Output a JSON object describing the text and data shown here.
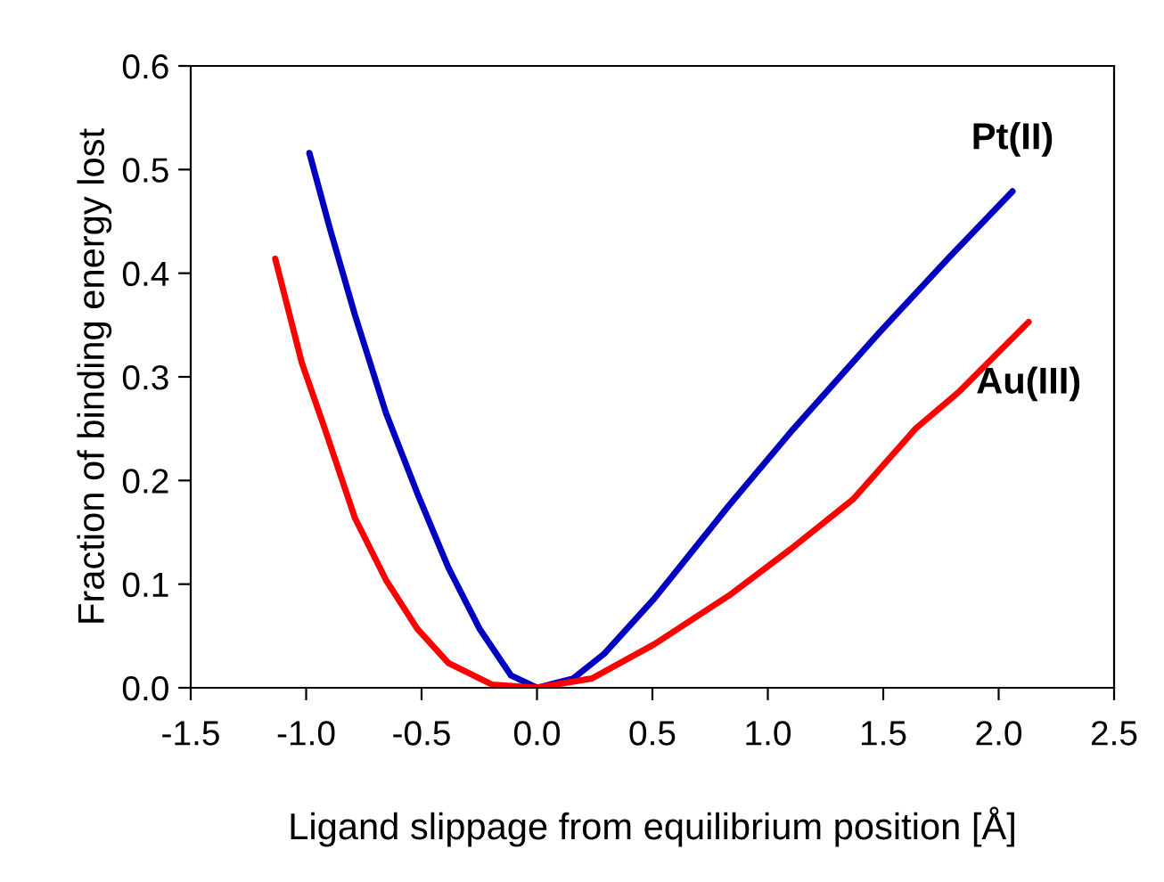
{
  "chart_data": {
    "type": "line",
    "xlabel": "Ligand slippage from equilibrium position [Å]",
    "ylabel": "Fraction of binding energy lost",
    "xlim": [
      -1.5,
      2.5
    ],
    "xticks": [
      {
        "value": -1.5,
        "label": "-1.5"
      },
      {
        "value": -1.0,
        "label": "-1.0"
      },
      {
        "value": -0.5,
        "label": "-0.5"
      },
      {
        "value": 0.0,
        "label": "0.0"
      },
      {
        "value": 0.5,
        "label": "0.5"
      },
      {
        "value": 1.0,
        "label": "1.0"
      },
      {
        "value": 1.5,
        "label": "1.5"
      },
      {
        "value": 2.0,
        "label": "2.0"
      },
      {
        "value": 2.5,
        "label": "2.5"
      }
    ],
    "ylim": [
      0,
      0.6
    ],
    "yticks": [
      {
        "value": 0,
        "label": "0.0"
      },
      {
        "value": 0.1,
        "label": "0.1"
      },
      {
        "value": 0.2,
        "label": "0.2"
      },
      {
        "value": 0.3,
        "label": "0.3"
      },
      {
        "value": 0.4,
        "label": "0.4"
      },
      {
        "value": 0.5,
        "label": "0.5"
      },
      {
        "value": 0.6,
        "label": "0.6"
      }
    ],
    "grid": false,
    "legend": false,
    "marker": "none",
    "line_style": "solid",
    "series": [
      {
        "name": "Pt(II)",
        "color": "#0000c0",
        "x": [
          -0.986,
          -0.897,
          -0.789,
          -0.654,
          -0.519,
          -0.384,
          -0.249,
          -0.113,
          0,
          0.157,
          0.292,
          0.508,
          0.832,
          1.1,
          1.48,
          1.78,
          2.06
        ],
        "values": [
          0.516,
          0.443,
          0.36,
          0.265,
          0.188,
          0.116,
          0.057,
          0.012,
          0,
          0.009,
          0.033,
          0.086,
          0.176,
          0.247,
          0.342,
          0.414,
          0.479
        ]
      },
      {
        "name": "Au(III)",
        "color": "#ff0000",
        "x": [
          -1.134,
          -1.018,
          -0.924,
          -0.789,
          -0.654,
          -0.519,
          -0.384,
          -0.194,
          0,
          0.238,
          0.508,
          0.832,
          1.1,
          1.37,
          1.64,
          1.83,
          2.13
        ],
        "values": [
          0.414,
          0.313,
          0.253,
          0.164,
          0.104,
          0.057,
          0.024,
          0.003,
          0,
          0.009,
          0.042,
          0.089,
          0.134,
          0.182,
          0.25,
          0.286,
          0.353
        ]
      }
    ]
  }
}
